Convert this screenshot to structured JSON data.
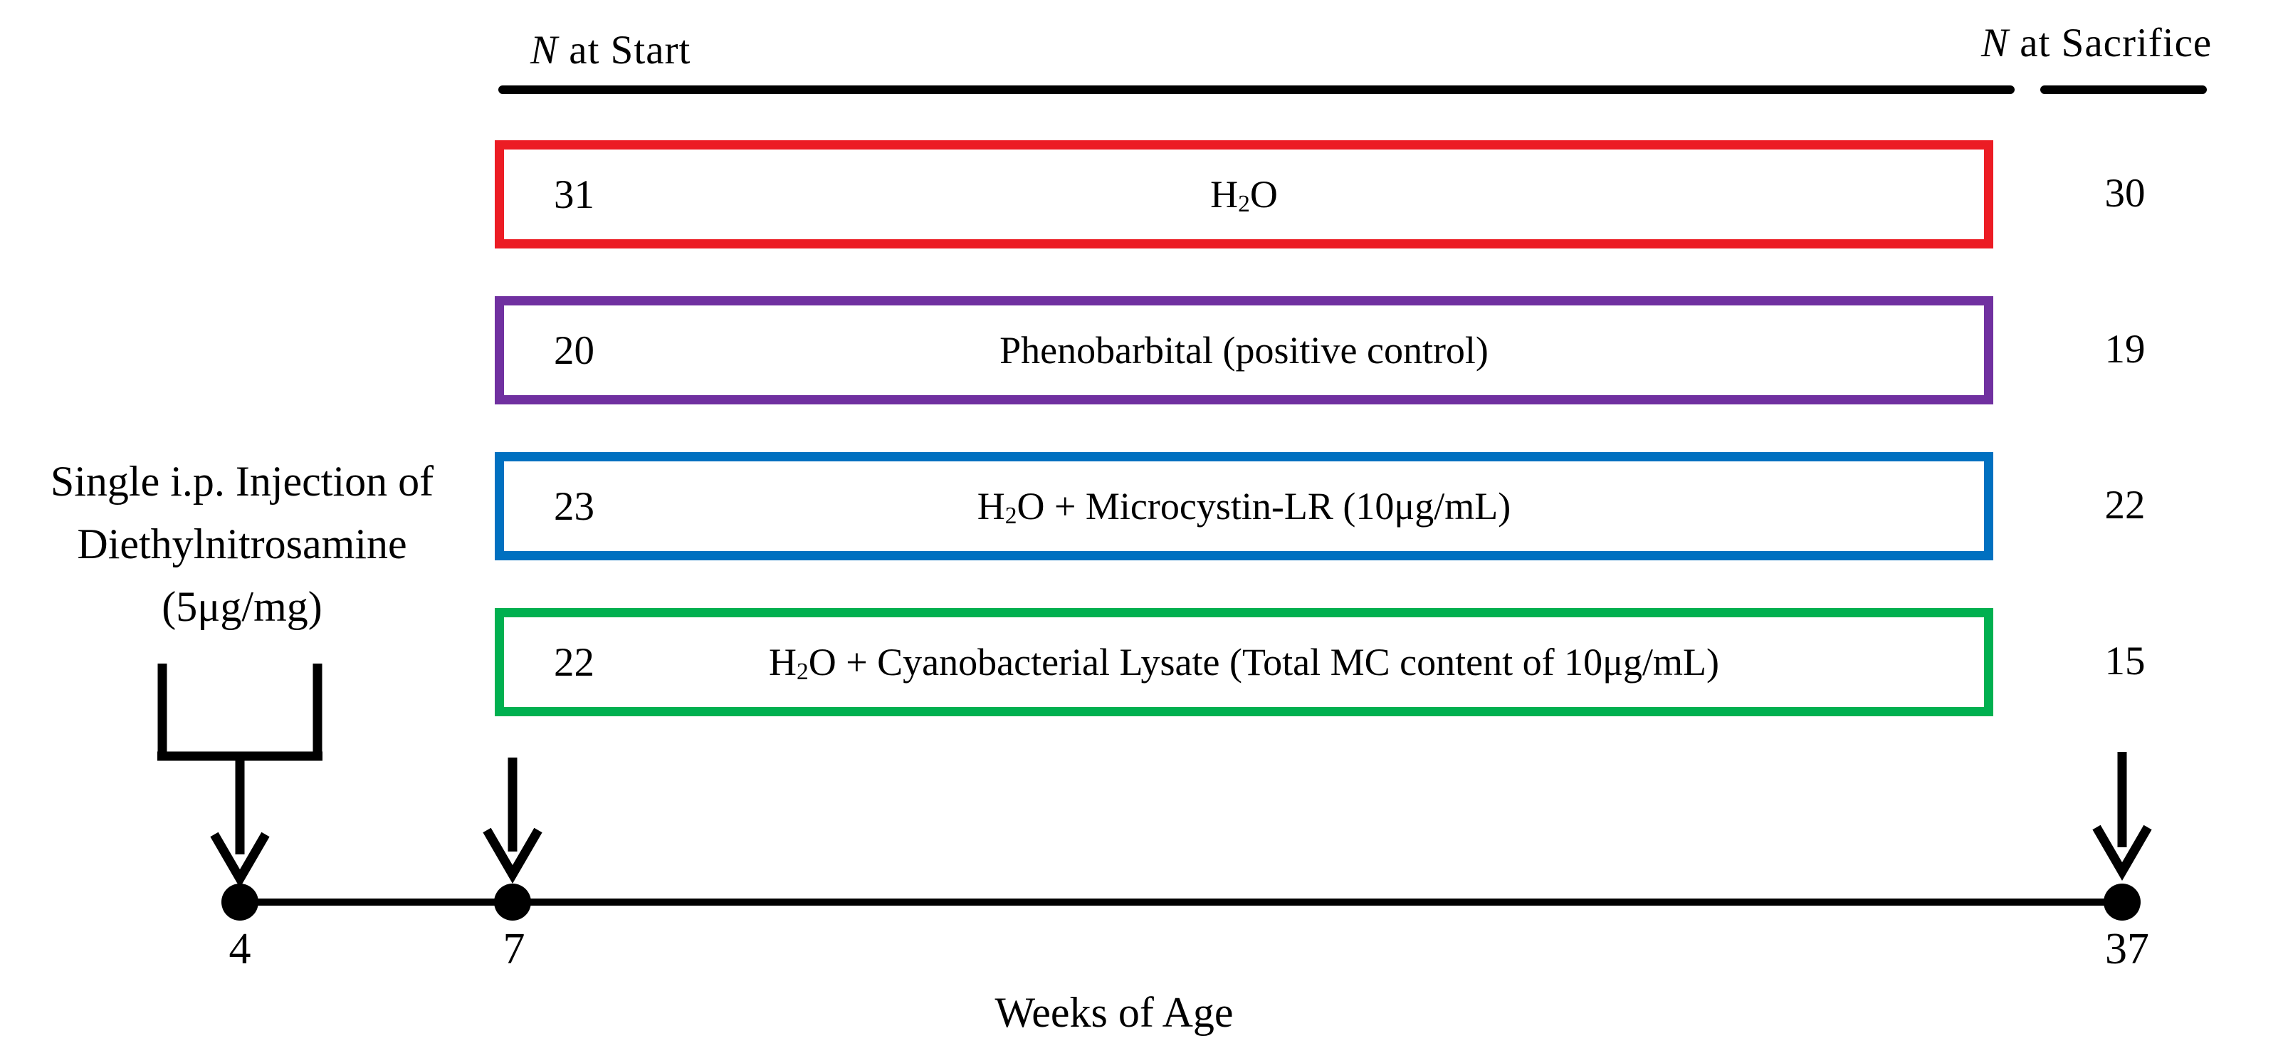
{
  "figure": {
    "type": "study-design-timeline",
    "description": "Experimental design: DEN-initiated rodent groups exposed to drinking-water treatments from week 7 to week 37"
  },
  "headers": {
    "n_at_start": {
      "italic": "N",
      "rest": " at Start"
    },
    "n_at_sacrifice": {
      "italic": "N",
      "rest": " at Sacrifice"
    }
  },
  "groups": [
    {
      "n_start": "31",
      "label": "H₂O",
      "n_sacrifice": "30",
      "color": "#EC1C24",
      "color_name": "red"
    },
    {
      "n_start": "20",
      "label": "Phenobarbital (positive control)",
      "n_sacrifice": "19",
      "color": "#7030A0",
      "color_name": "purple"
    },
    {
      "n_start": "23",
      "label": "H₂O + Microcystin-LR (10μg/mL)",
      "n_sacrifice": "22",
      "color": "#0070C0",
      "color_name": "blue"
    },
    {
      "n_start": "22",
      "label": "H₂O + Cyanobacterial Lysate (Total MC content of 10μg/mL)",
      "n_sacrifice": "15",
      "color": "#00B050",
      "color_name": "green"
    }
  ],
  "injection_note": {
    "lines": [
      "Single i.p. Injection of",
      "Diethylnitrosamine",
      "(5μg/mg)"
    ]
  },
  "timeline": {
    "axis_label": "Weeks of Age",
    "ticks": [
      "4",
      "7",
      "37"
    ]
  },
  "colors": {
    "line": "#000000",
    "background": "#FFFFFF"
  }
}
